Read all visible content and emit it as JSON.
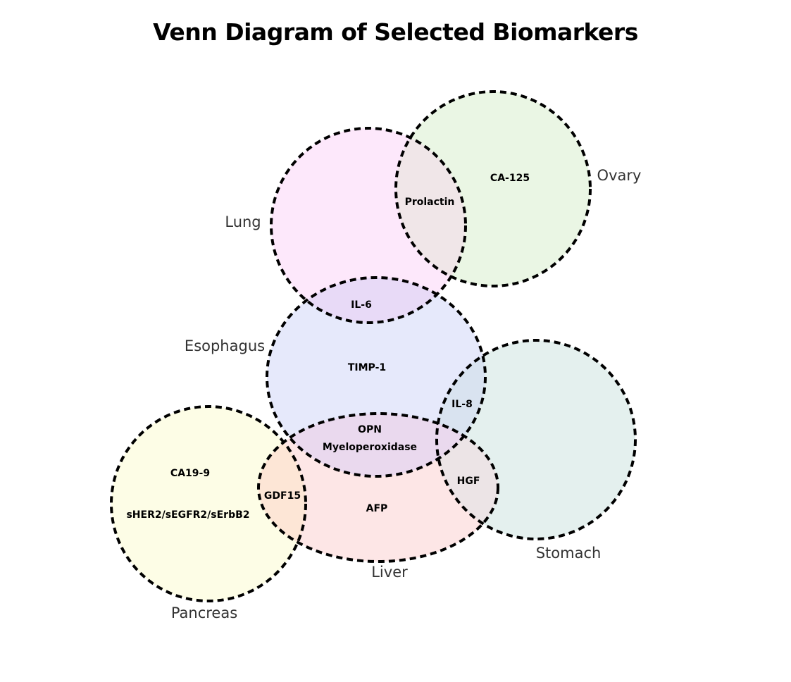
{
  "title": "Venn Diagram of Selected Biomarkers",
  "sets": {
    "lung": {
      "label": "Lung",
      "color": "#fde8fb"
    },
    "ovary": {
      "label": "Ovary",
      "color": "#eaf6e4"
    },
    "esophagus": {
      "label": "Esophagus",
      "color": "#e6e9fb"
    },
    "stomach": {
      "label": "Stomach",
      "color": "#e4f0ee"
    },
    "pancreas": {
      "label": "Pancreas",
      "color": "#fdfde6"
    },
    "liver": {
      "label": "Liver",
      "color": "#fde6e6"
    }
  },
  "overlap_colors": {
    "lung_ovary": "#f0e6e8",
    "lung_esophagus": "#e8daf7",
    "esophagus_stomach": "#d9e3f0",
    "esophagus_liver": "#ead9ee",
    "liver_stomach": "#ece4e6",
    "pancreas_liver": "#fde6d6"
  },
  "markers": {
    "ca125": "CA-125",
    "prolactin": "Prolactin",
    "il6": "IL-6",
    "timp1": "TIMP-1",
    "il8": "IL-8",
    "opn": "OPN",
    "myeloperoxidase": "Myeloperoxidase",
    "hgf": "HGF",
    "afp": "AFP",
    "ca199": "CA19-9",
    "gdf15": "GDF15",
    "sher2": "sHER2/sEGFR2/sErbB2"
  }
}
